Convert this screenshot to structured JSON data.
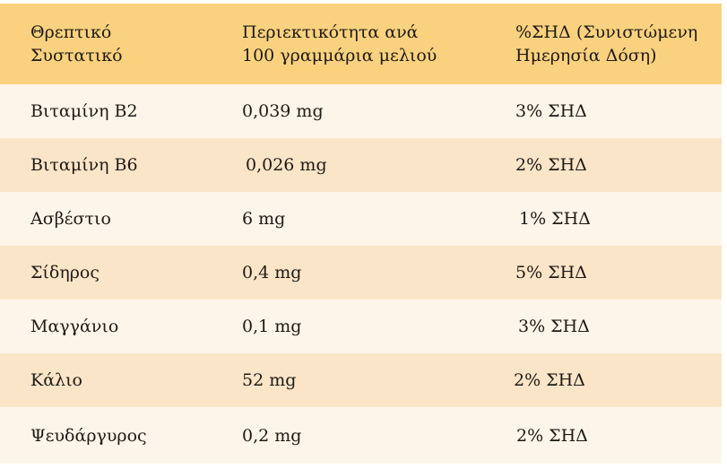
{
  "table": {
    "headers": [
      "Θρεπτικό\nΣυστατικό",
      "Περιεκτικότητα ανά\n100 γραμμάρια μελιού",
      "%ΣΗΔ (Συνιστώμενη\nΗμερησία Δόση)"
    ],
    "rows": [
      {
        "nutrient": "Βιταμίνη Β2",
        "amount": "0,039 mg",
        "rda": "3% ΣΗΔ"
      },
      {
        "nutrient": "Βιταμίνη Β6",
        "amount": "0,026 mg",
        "rda": "2% ΣΗΔ"
      },
      {
        "nutrient": "Ασβέστιο",
        "amount": "6 mg",
        "rda": "1% ΣΗΔ"
      },
      {
        "nutrient": "Σίδηρος",
        "amount": "0,4 mg",
        "rda": "5% ΣΗΔ"
      },
      {
        "nutrient": "Μαγγάνιο",
        "amount": "0,1 mg",
        "rda": "3% ΣΗΔ"
      },
      {
        "nutrient": "Κάλιο",
        "amount": "52 mg",
        "rda": "2% ΣΗΔ"
      },
      {
        "nutrient": "Ψευδάργυρος",
        "amount": "0,2 mg",
        "rda": "2% ΣΗΔ"
      }
    ]
  }
}
